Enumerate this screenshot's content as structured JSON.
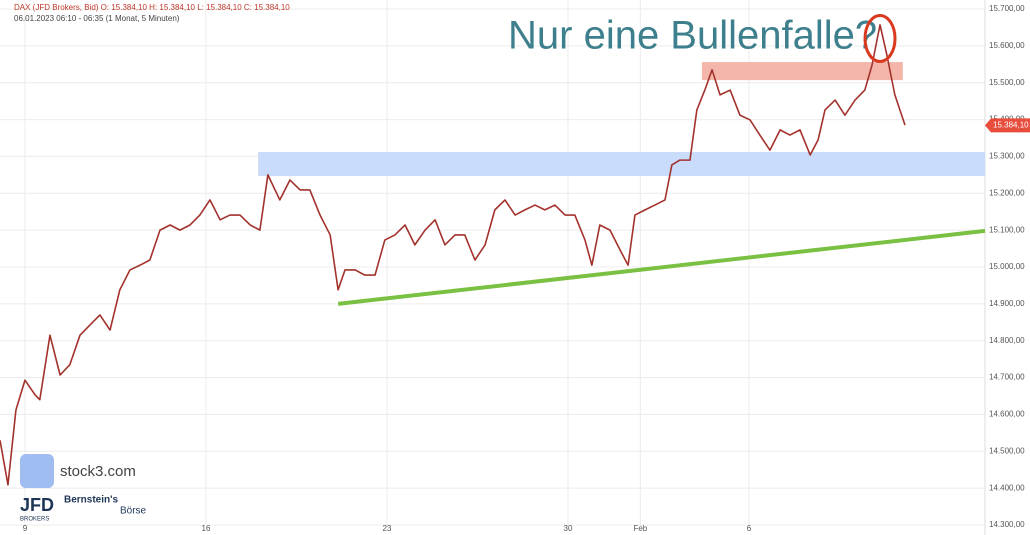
{
  "chart_data": {
    "type": "line",
    "title": "Nur eine Bullenfalle?",
    "header": "DAX (JFD Brokers, Bid)  O: 15.384,10  H: 15.384,10  L: 15.384,10  C: 15.384,10",
    "subheader": "06.01.2023 06:10 - 06:35   (1 Monat, 5 Minuten)",
    "x": [
      -0.69,
      -0.47,
      -0.25,
      0,
      0.28,
      0.41,
      0.69,
      0.97,
      1.24,
      1.52,
      1.8,
      2.07,
      2.35,
      2.62,
      2.9,
      3.18,
      3.45,
      3.73,
      4.01,
      4.28,
      4.56,
      4.83,
      5.11,
      5.39,
      5.66,
      5.94,
      6.22,
      6.49,
      6.71,
      7.04,
      7.32,
      7.6,
      7.87,
      8.15,
      8.43,
      8.65,
      8.84,
      9.12,
      9.39,
      9.67,
      9.94,
      10.22,
      10.5,
      10.77,
      11.05,
      11.33,
      11.6,
      11.88,
      12.15,
      12.43,
      12.71,
      12.98,
      13.26,
      13.54,
      13.81,
      14.09,
      14.36,
      14.64,
      14.92,
      15.19,
      15.47,
      15.66,
      15.88,
      16.16,
      16.44,
      16.66,
      16.85,
      17.13,
      17.4,
      17.68,
      17.87,
      18.09,
      18.37,
      18.56,
      18.78,
      18.98,
      19.2,
      19.48,
      19.75,
      20.03,
      20.3,
      20.58,
      20.86,
      21.13,
      21.41,
      21.69,
      21.91,
      22.1,
      22.38,
      22.65,
      22.93,
      23.2,
      23.4,
      23.62,
      23.81,
      24.03,
      24.31
    ],
    "series": [
      {
        "color": "#a3322c",
        "values": [
          14530,
          14409,
          14612,
          14693,
          14653,
          14640,
          14815,
          14707,
          14735,
          14815,
          14843,
          14870,
          14829,
          14938,
          14992,
          15005,
          15019,
          15100,
          15114,
          15100,
          15114,
          15141,
          15182,
          15128,
          15141,
          15141,
          15114,
          15100,
          15250,
          15182,
          15236,
          15209,
          15209,
          15141,
          15087,
          14938,
          14992,
          14992,
          14978,
          14978,
          15073,
          15087,
          15114,
          15060,
          15100,
          15128,
          15060,
          15087,
          15087,
          15019,
          15060,
          15155,
          15182,
          15141,
          15155,
          15168,
          15155,
          15168,
          15141,
          15141,
          15073,
          15005,
          15114,
          15100,
          15046,
          15005,
          15141,
          15155,
          15168,
          15182,
          15277,
          15290,
          15290,
          15426,
          15480,
          15535,
          15467,
          15480,
          15412,
          15399,
          15358,
          15317,
          15372,
          15358,
          15372,
          15304,
          15345,
          15426,
          15453,
          15412,
          15453,
          15480,
          15548,
          15657,
          15575,
          15467,
          15385
        ]
      }
    ],
    "xlim": [
      -0.69,
      26.52
    ],
    "xticks": [
      {
        "value": 0,
        "label": "9"
      },
      {
        "value": 5,
        "label": "16"
      },
      {
        "value": 10,
        "label": "23"
      },
      {
        "value": 15,
        "label": "30"
      },
      {
        "value": 17,
        "label": "Feb"
      },
      {
        "value": 20,
        "label": "6"
      }
    ],
    "ylim": [
      14300,
      15700
    ],
    "yticks": [
      {
        "value": 14300,
        "label": "14.300,00"
      },
      {
        "value": 14400,
        "label": "14.400,00"
      },
      {
        "value": 14500,
        "label": "14.500,00"
      },
      {
        "value": 14600,
        "label": "14.600,00"
      },
      {
        "value": 14700,
        "label": "14.700,00"
      },
      {
        "value": 14800,
        "label": "14.800,00"
      },
      {
        "value": 14900,
        "label": "14.900,00"
      },
      {
        "value": 15000,
        "label": "15.000,00"
      },
      {
        "value": 15100,
        "label": "15.100,00"
      },
      {
        "value": 15200,
        "label": "15.200,00"
      },
      {
        "value": 15300,
        "label": "15.300,00"
      },
      {
        "value": 15400,
        "label": "15.400,00"
      },
      {
        "value": 15500,
        "label": "15.500,00"
      },
      {
        "value": 15600,
        "label": "15.600,00"
      },
      {
        "value": 15700,
        "label": "15.700,00"
      }
    ],
    "grid": true,
    "last_price": {
      "value": 15384.1,
      "label": "15.384,10"
    },
    "zones": [
      {
        "x": [
          6.44,
          26.52
        ],
        "y": [
          15247,
          15312
        ],
        "color": "#c9dcfb"
      },
      {
        "x": [
          18.7,
          24.25
        ],
        "y": [
          15507,
          15556
        ],
        "color": "#f4b6ab"
      }
    ],
    "trendline": {
      "x": [
        8.65,
        26.52
      ],
      "y": [
        14900,
        15098
      ],
      "color": "#7ac143"
    },
    "highlight": {
      "x": 23.62,
      "y": 15620,
      "color": "#d9391f"
    },
    "branding": {
      "site": "stock3.com",
      "broker": "JFD",
      "broker_sub": "BROKERS",
      "partner": "Bernstein's",
      "partner_sub": "Börse"
    }
  }
}
